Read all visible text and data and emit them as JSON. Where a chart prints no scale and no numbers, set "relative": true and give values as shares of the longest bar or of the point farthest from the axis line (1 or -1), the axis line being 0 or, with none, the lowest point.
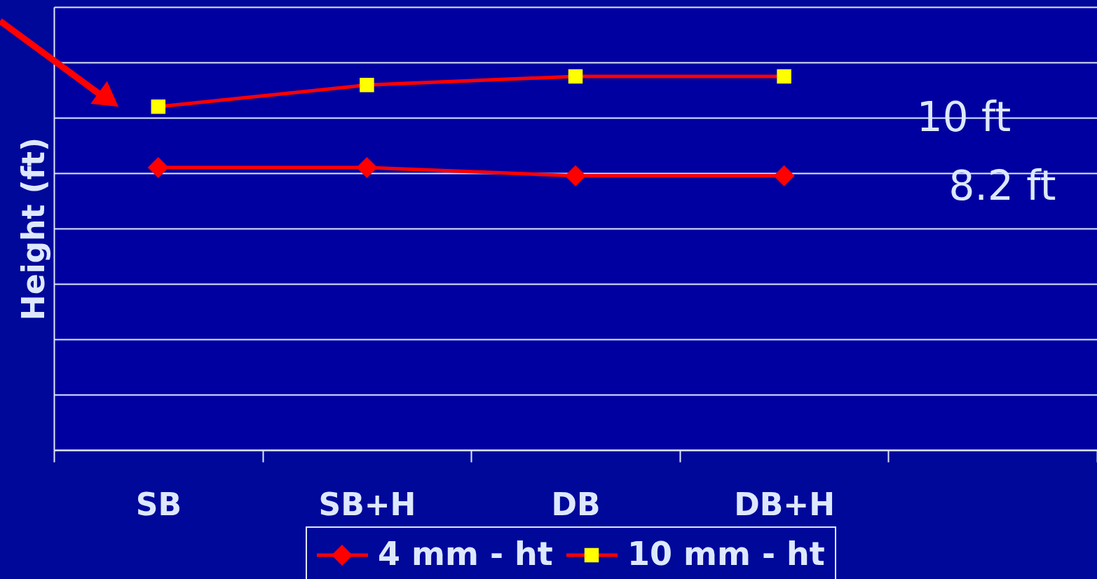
{
  "chart_data": {
    "type": "line",
    "ylabel": "Height (ft)",
    "relative": true,
    "categories": [
      "SB",
      "SB+H",
      "DB",
      "DB+H",
      null
    ],
    "series": [
      {
        "name": "4 mm - ht",
        "color": "#ff0000",
        "marker": "diamond",
        "values": [
          0.756,
          0.756,
          0.734,
          0.734,
          null
        ]
      },
      {
        "name": "10 mm - ht",
        "color": "#ff0000",
        "marker": "square",
        "values": [
          0.919,
          0.977,
          1,
          1,
          null
        ]
      }
    ],
    "annotations": [
      "10 ft",
      "8.2 ft"
    ],
    "grid": "y",
    "legend": "bottom",
    "line_style": "solid"
  }
}
